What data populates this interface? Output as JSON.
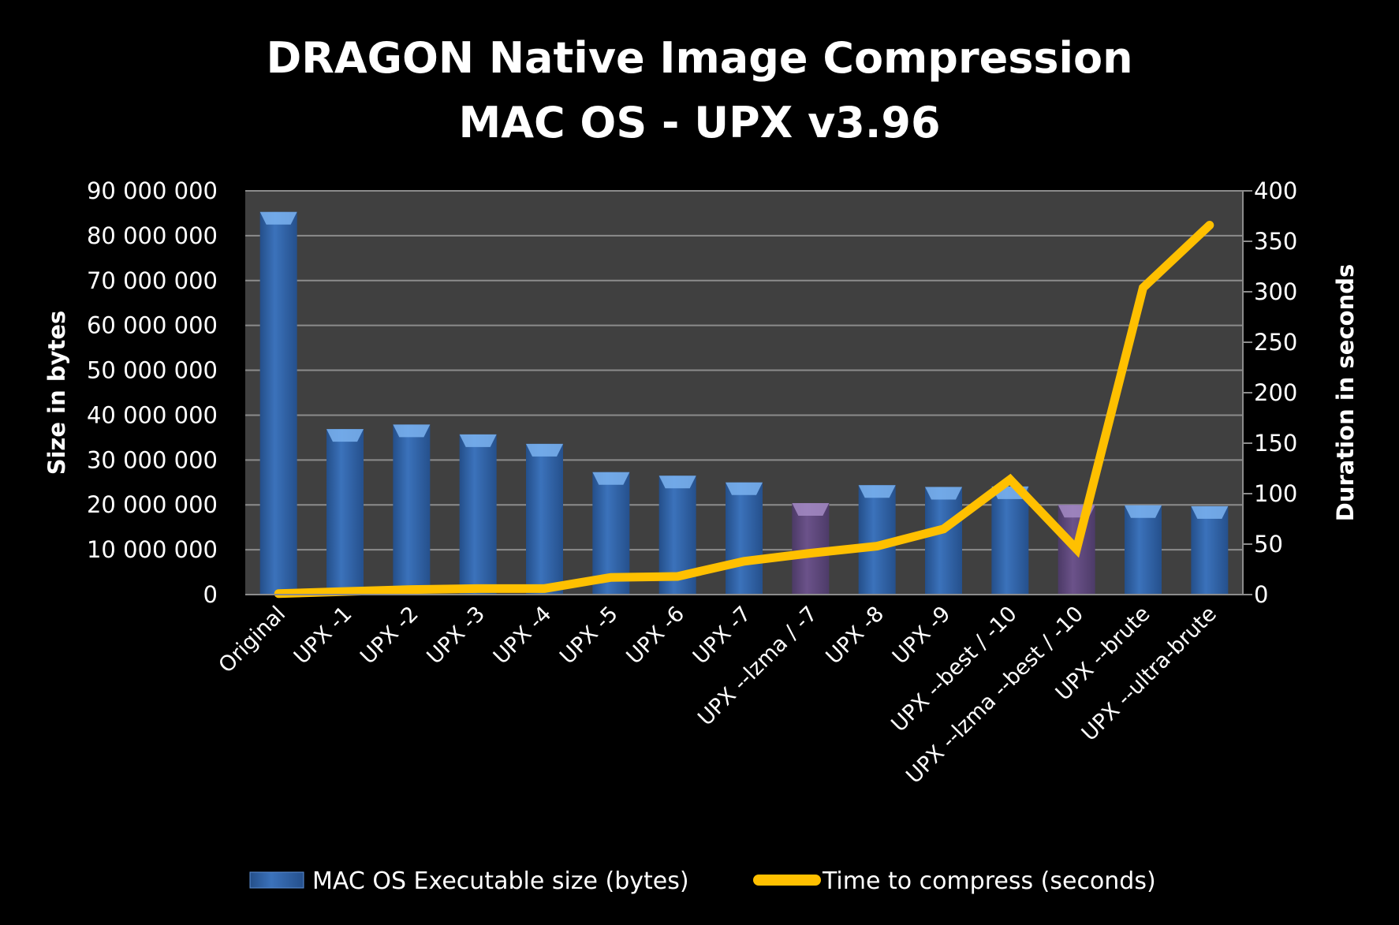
{
  "chart_data": {
    "type": "bar+line",
    "title": [
      "DRAGON Native Image Compression",
      "MAC OS - UPX v3.96"
    ],
    "categories": [
      "Original",
      "UPX -1",
      "UPX -2",
      "UPX -3",
      "UPX -4",
      "UPX -5",
      "UPX -6",
      "UPX -7",
      "UPX --lzma / -7",
      "UPX -8",
      "UPX -9",
      "UPX --best / -10",
      "UPX --lzma --best / -10",
      "UPX --brute",
      "UPX --ultra-brute"
    ],
    "series": [
      {
        "name": "MAC OS Executable size (bytes)",
        "type": "bar",
        "axis": "left",
        "values": [
          85300000,
          36900000,
          37900000,
          35700000,
          33600000,
          27300000,
          26500000,
          25000000,
          20400000,
          24400000,
          24000000,
          24100000,
          20000000,
          19900000,
          19700000
        ]
      },
      {
        "name": "Time to compress (seconds)",
        "type": "line",
        "axis": "right",
        "values": [
          1,
          3,
          5,
          6,
          6,
          17,
          18,
          33,
          41,
          48,
          65,
          114,
          45,
          304,
          366
        ]
      }
    ],
    "ylabel": "Size in bytes",
    "ylim": [
      0,
      90000000
    ],
    "yticks": [
      "0",
      "10 000 000",
      "20 000 000",
      "30 000 000",
      "40 000 000",
      "50 000 000",
      "60 000 000",
      "70 000 000",
      "80 000 000",
      "90 000 000"
    ],
    "y2label": "Duration in seconds",
    "y2lim": [
      0,
      400
    ],
    "y2ticks": [
      "0",
      "50",
      "100",
      "150",
      "200",
      "250",
      "300",
      "350",
      "400"
    ],
    "grid": true,
    "legend_position": "bottom",
    "colors": {
      "bar": "#3a6fb8",
      "bar_lzma": "#6a5188",
      "line": "#ffc000",
      "plot_bg": "#404040",
      "grid": "#8c8c8c",
      "background": "#000000"
    },
    "lzma_categories": [
      8,
      12
    ]
  }
}
